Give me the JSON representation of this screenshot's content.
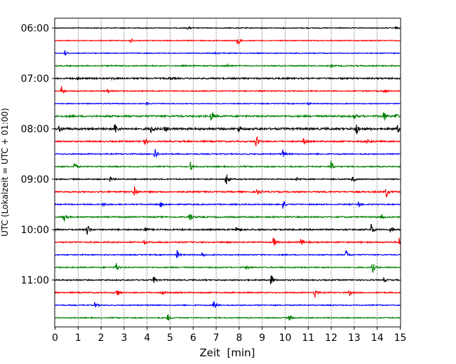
{
  "chart_data": {
    "type": "line",
    "title": "",
    "xlabel": "Zeit  [min]",
    "ylabel": "UTC (Lokalzeit = UTC + 01:00)",
    "xlim": [
      0,
      15
    ],
    "x_ticks": [
      0,
      1,
      2,
      3,
      4,
      5,
      6,
      7,
      8,
      9,
      10,
      11,
      12,
      13,
      14,
      15
    ],
    "x_tick_labels": [
      "0",
      "1",
      "2",
      "3",
      "4",
      "5",
      "6",
      "7",
      "8",
      "9",
      "10",
      "11",
      "12",
      "13",
      "14",
      "15"
    ],
    "y_ticks": [
      "06:00",
      "07:00",
      "08:00",
      "09:00",
      "10:00",
      "11:00"
    ],
    "grid": "vertical dotted at each minute",
    "trace_interval_min": 15,
    "start_time": "06:00",
    "trace_colors": [
      "#000000",
      "#ff0000",
      "#0000ff",
      "#008000"
    ],
    "traces": [
      {
        "start": "06:00",
        "color": "#000000",
        "noise": 0.6,
        "events": [
          {
            "t": 5.8,
            "a": 2
          },
          {
            "t": 14.8,
            "a": 2
          }
        ]
      },
      {
        "start": "06:15",
        "color": "#ff0000",
        "noise": 0.6,
        "events": [
          {
            "t": 3.3,
            "a": 3
          },
          {
            "t": 7.95,
            "a": 10
          }
        ]
      },
      {
        "start": "06:30",
        "color": "#0000ff",
        "noise": 0.6,
        "events": [
          {
            "t": 0.45,
            "a": 5
          },
          {
            "t": 7.0,
            "a": 2
          }
        ]
      },
      {
        "start": "06:45",
        "color": "#008000",
        "noise": 0.8,
        "events": [
          {
            "t": 7.5,
            "a": 2
          },
          {
            "t": 12.0,
            "a": 2
          }
        ]
      },
      {
        "start": "07:00",
        "color": "#000000",
        "noise": 1.0,
        "events": [
          {
            "t": 1.0,
            "a": 2
          },
          {
            "t": 2.5,
            "a": 2
          },
          {
            "t": 5.0,
            "a": 2
          }
        ]
      },
      {
        "start": "07:15",
        "color": "#ff0000",
        "noise": 0.7,
        "events": [
          {
            "t": 0.3,
            "a": 8
          },
          {
            "t": 14.3,
            "a": 4
          },
          {
            "t": 2.3,
            "a": 2
          }
        ]
      },
      {
        "start": "07:30",
        "color": "#0000ff",
        "noise": 0.6,
        "events": [
          {
            "t": 4.0,
            "a": 2
          },
          {
            "t": 11.0,
            "a": 2
          }
        ]
      },
      {
        "start": "07:45",
        "color": "#008000",
        "noise": 1.2,
        "events": [
          {
            "t": 6.8,
            "a": 8
          },
          {
            "t": 13.0,
            "a": 5
          },
          {
            "t": 14.3,
            "a": 8
          },
          {
            "t": 14.8,
            "a": 5
          }
        ]
      },
      {
        "start": "08:00",
        "color": "#000000",
        "noise": 1.4,
        "events": [
          {
            "t": 0.2,
            "a": 5
          },
          {
            "t": 2.6,
            "a": 9
          },
          {
            "t": 4.2,
            "a": 7
          },
          {
            "t": 4.8,
            "a": 5
          },
          {
            "t": 8.0,
            "a": 5
          },
          {
            "t": 13.1,
            "a": 9
          },
          {
            "t": 14.9,
            "a": 5
          }
        ]
      },
      {
        "start": "08:15",
        "color": "#ff0000",
        "noise": 1.0,
        "events": [
          {
            "t": 3.9,
            "a": 5
          },
          {
            "t": 8.75,
            "a": 10
          },
          {
            "t": 10.8,
            "a": 4
          },
          {
            "t": 13.6,
            "a": 4
          }
        ]
      },
      {
        "start": "08:30",
        "color": "#0000ff",
        "noise": 0.8,
        "events": [
          {
            "t": 4.35,
            "a": 9
          },
          {
            "t": 9.9,
            "a": 6
          }
        ]
      },
      {
        "start": "08:45",
        "color": "#008000",
        "noise": 0.8,
        "events": [
          {
            "t": 0.85,
            "a": 6
          },
          {
            "t": 5.9,
            "a": 8
          },
          {
            "t": 12.0,
            "a": 9
          }
        ]
      },
      {
        "start": "09:00",
        "color": "#000000",
        "noise": 0.8,
        "events": [
          {
            "t": 2.4,
            "a": 4
          },
          {
            "t": 7.45,
            "a": 10
          },
          {
            "t": 10.5,
            "a": 3
          },
          {
            "t": 12.95,
            "a": 4
          }
        ]
      },
      {
        "start": "09:15",
        "color": "#ff0000",
        "noise": 1.0,
        "events": [
          {
            "t": 3.45,
            "a": 9
          },
          {
            "t": 8.8,
            "a": 5
          },
          {
            "t": 14.4,
            "a": 8
          }
        ]
      },
      {
        "start": "09:30",
        "color": "#0000ff",
        "noise": 0.8,
        "events": [
          {
            "t": 2.1,
            "a": 4
          },
          {
            "t": 4.6,
            "a": 4
          },
          {
            "t": 9.9,
            "a": 9
          },
          {
            "t": 13.2,
            "a": 4
          }
        ]
      },
      {
        "start": "09:45",
        "color": "#008000",
        "noise": 0.9,
        "events": [
          {
            "t": 0.4,
            "a": 6
          },
          {
            "t": 5.85,
            "a": 9
          },
          {
            "t": 14.2,
            "a": 3
          }
        ]
      },
      {
        "start": "10:00",
        "color": "#000000",
        "noise": 1.0,
        "events": [
          {
            "t": 1.4,
            "a": 9
          },
          {
            "t": 3.9,
            "a": 4
          },
          {
            "t": 7.9,
            "a": 6
          },
          {
            "t": 13.75,
            "a": 9
          },
          {
            "t": 14.6,
            "a": 5
          }
        ]
      },
      {
        "start": "10:15",
        "color": "#ff0000",
        "noise": 0.9,
        "events": [
          {
            "t": 3.9,
            "a": 3
          },
          {
            "t": 9.5,
            "a": 8
          },
          {
            "t": 10.7,
            "a": 6
          },
          {
            "t": 14.95,
            "a": 7
          }
        ]
      },
      {
        "start": "10:30",
        "color": "#0000ff",
        "noise": 0.7,
        "events": [
          {
            "t": 5.3,
            "a": 7
          },
          {
            "t": 6.4,
            "a": 3
          },
          {
            "t": 12.65,
            "a": 7
          }
        ]
      },
      {
        "start": "10:45",
        "color": "#008000",
        "noise": 0.8,
        "events": [
          {
            "t": 2.65,
            "a": 8
          },
          {
            "t": 8.3,
            "a": 4
          },
          {
            "t": 13.8,
            "a": 8
          }
        ]
      },
      {
        "start": "11:00",
        "color": "#000000",
        "noise": 0.8,
        "events": [
          {
            "t": 4.3,
            "a": 6
          },
          {
            "t": 9.4,
            "a": 9
          },
          {
            "t": 14.3,
            "a": 3
          }
        ]
      },
      {
        "start": "11:15",
        "color": "#ff0000",
        "noise": 0.8,
        "events": [
          {
            "t": 2.7,
            "a": 6
          },
          {
            "t": 4.65,
            "a": 3
          },
          {
            "t": 11.3,
            "a": 9
          },
          {
            "t": 12.8,
            "a": 4
          }
        ]
      },
      {
        "start": "11:30",
        "color": "#0000ff",
        "noise": 0.7,
        "events": [
          {
            "t": 1.75,
            "a": 5
          },
          {
            "t": 6.9,
            "a": 8
          }
        ]
      },
      {
        "start": "11:45",
        "color": "#008000",
        "noise": 0.7,
        "events": [
          {
            "t": 4.9,
            "a": 6
          },
          {
            "t": 10.2,
            "a": 5
          }
        ]
      }
    ]
  }
}
